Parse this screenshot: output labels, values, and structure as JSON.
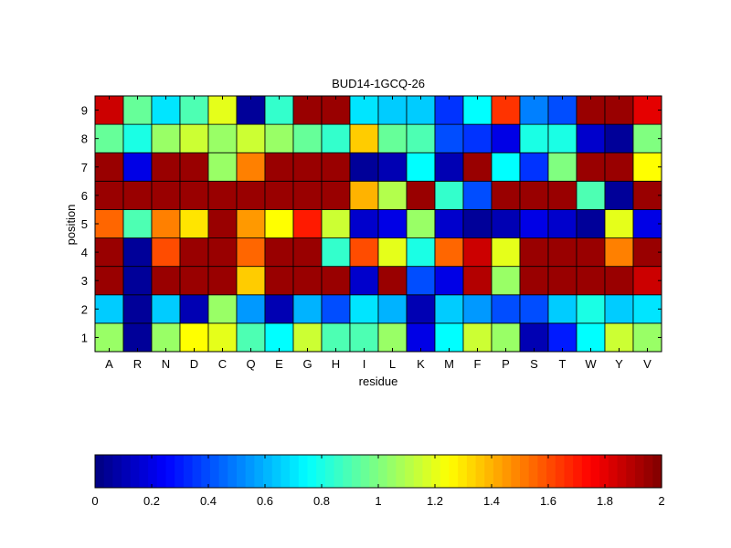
{
  "chart_data": {
    "type": "heatmap",
    "title": "BUD14-1GCQ-26",
    "xlabel": "residue",
    "ylabel": "position",
    "x_categories": [
      "A",
      "R",
      "N",
      "D",
      "C",
      "Q",
      "E",
      "G",
      "H",
      "I",
      "L",
      "K",
      "M",
      "F",
      "P",
      "S",
      "T",
      "W",
      "Y",
      "V"
    ],
    "y_categories": [
      "1",
      "2",
      "3",
      "4",
      "5",
      "6",
      "7",
      "8",
      "9"
    ],
    "values": [
      [
        1.05,
        0.05,
        1.05,
        1.25,
        1.2,
        0.9,
        0.75,
        1.15,
        0.9,
        0.9,
        1.05,
        0.2,
        0.75,
        1.15,
        1.05,
        0.1,
        0.3,
        0.75,
        1.15,
        1.05
      ],
      [
        0.65,
        0.05,
        0.65,
        0.1,
        1.05,
        0.55,
        0.1,
        0.6,
        0.4,
        0.7,
        0.6,
        0.1,
        0.65,
        0.55,
        0.4,
        0.4,
        0.65,
        0.8,
        0.65,
        0.7
      ],
      [
        1.95,
        0.05,
        1.95,
        1.95,
        1.95,
        1.35,
        1.95,
        1.95,
        1.95,
        0.15,
        1.95,
        0.4,
        0.2,
        1.9,
        1.05,
        1.95,
        1.95,
        1.95,
        1.95,
        1.85
      ],
      [
        1.95,
        0.05,
        1.6,
        1.95,
        1.95,
        1.55,
        1.95,
        1.95,
        0.85,
        1.6,
        1.2,
        0.8,
        1.55,
        1.85,
        1.2,
        1.95,
        1.95,
        1.95,
        1.5,
        1.95
      ],
      [
        1.55,
        0.9,
        1.5,
        1.3,
        1.95,
        1.45,
        1.25,
        1.7,
        1.15,
        0.15,
        0.2,
        1.05,
        0.15,
        0.05,
        0.1,
        0.2,
        0.15,
        0.05,
        1.2,
        0.2
      ],
      [
        1.95,
        1.95,
        1.95,
        1.95,
        1.95,
        1.95,
        1.95,
        1.95,
        1.95,
        1.4,
        1.1,
        1.95,
        0.85,
        0.4,
        1.95,
        1.95,
        1.95,
        0.9,
        0.05,
        1.95
      ],
      [
        1.95,
        0.2,
        1.95,
        1.95,
        1.05,
        1.5,
        1.95,
        1.95,
        1.95,
        0.05,
        0.1,
        0.75,
        0.1,
        1.95,
        0.75,
        0.35,
        1.0,
        1.95,
        1.95,
        1.25
      ],
      [
        0.95,
        0.8,
        1.05,
        1.15,
        1.05,
        1.15,
        1.05,
        0.95,
        0.85,
        1.35,
        0.95,
        0.9,
        0.4,
        0.35,
        0.2,
        0.8,
        0.8,
        0.15,
        0.05,
        1.0
      ],
      [
        1.85,
        0.95,
        0.7,
        0.9,
        1.2,
        0.05,
        0.85,
        1.95,
        1.95,
        0.7,
        0.65,
        0.65,
        0.35,
        0.75,
        1.65,
        0.5,
        0.4,
        1.95,
        1.95,
        1.8
      ]
    ],
    "colorbar": {
      "colormap": "jet",
      "range": [
        0,
        2
      ],
      "ticks": [
        "0",
        "0.2",
        "0.4",
        "0.6",
        "0.8",
        "1",
        "1.2",
        "1.4",
        "1.6",
        "1.8",
        "2"
      ]
    },
    "grid": true
  }
}
